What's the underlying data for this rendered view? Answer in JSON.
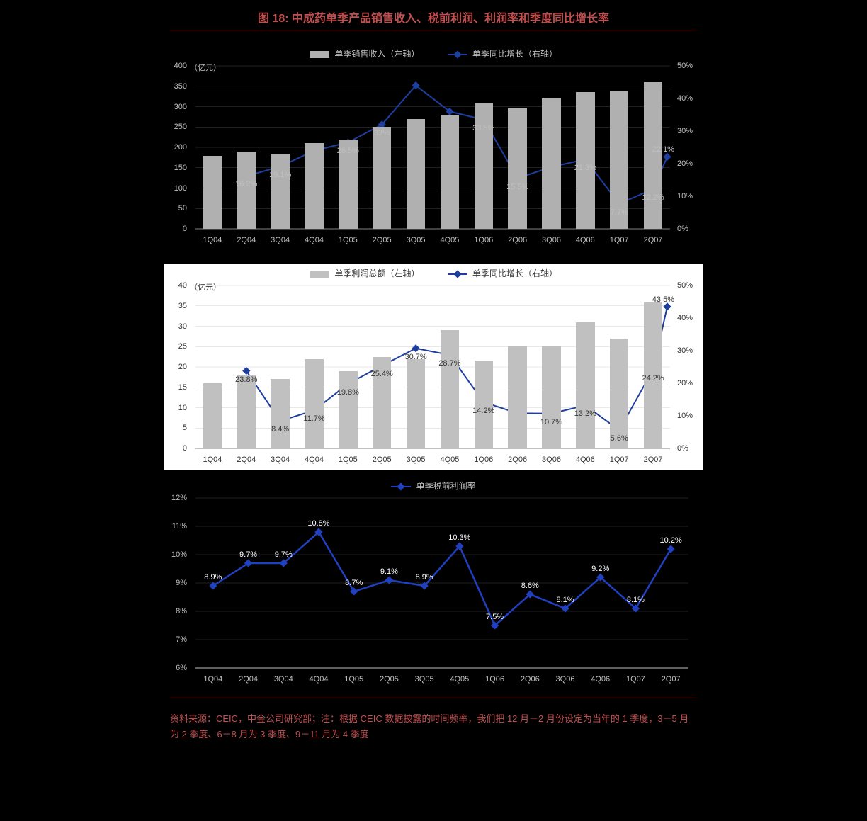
{
  "title": "图 18:  中成药单季产品销售收入、税前利润、利润率和季度同比增长率",
  "footnote": "资料来源：CEIC，中金公司研究部；注：根据 CEIC 数据披露的时间频率，我们把 12 月－2 月份设定为当年的 1 季度，3－5 月为 2 季度、6－8 月为 3 季度、9－11 月为 4 季度",
  "categories": [
    "1Q04",
    "2Q04",
    "3Q04",
    "4Q04",
    "1Q05",
    "2Q05",
    "3Q05",
    "4Q05",
    "1Q06",
    "2Q06",
    "3Q06",
    "4Q06",
    "1Q07",
    "2Q07"
  ],
  "chart1": {
    "type": "bar+line",
    "legend_bar": "单季销售收入（左轴）",
    "legend_line": "单季同比增长（右轴）",
    "unit_left": "（亿元）",
    "bar_color": "#b0b0b0",
    "line_color": "#1f3fa0",
    "marker": "diamond",
    "background": "#000000",
    "ylim_left": [
      0,
      400
    ],
    "ylim_right": [
      0,
      50
    ],
    "ytick_left": [
      0,
      50,
      100,
      150,
      200,
      250,
      300,
      350,
      400
    ],
    "ytick_right": [
      "0%",
      "10%",
      "20%",
      "30%",
      "40%",
      "50%"
    ],
    "bar_values": [
      180,
      190,
      185,
      210,
      220,
      250,
      270,
      280,
      310,
      295,
      320,
      335,
      340,
      360
    ],
    "line_values": [
      null,
      16.2,
      19.1,
      24,
      26.5,
      32,
      44,
      36,
      33.5,
      15.5,
      19,
      21.3,
      7.7,
      12.2
    ],
    "line_end_extra": 22.1,
    "line_labels": [
      null,
      "16.2%",
      "19.1%",
      null,
      "26.5%",
      "32%",
      null,
      null,
      "33.5%",
      "15.5%",
      null,
      "21.3%",
      "7.7%",
      "12.2%"
    ],
    "line_end_label": "22.1%"
  },
  "chart2": {
    "type": "bar+line",
    "legend_bar": "单季利润总额（左轴）",
    "legend_line": "单季同比增长（右轴）",
    "unit_left": "（亿元）",
    "bar_color": "#c0c0c0",
    "line_color": "#1f3fa0",
    "marker": "diamond",
    "background": "#ffffff",
    "ylim_left": [
      0,
      40
    ],
    "ylim_right": [
      0,
      50
    ],
    "ytick_left": [
      0,
      5,
      10,
      15,
      20,
      25,
      30,
      35,
      40
    ],
    "ytick_right": [
      "0%",
      "10%",
      "20%",
      "30%",
      "40%",
      "50%"
    ],
    "bar_values": [
      16,
      18,
      17,
      22,
      19,
      22.5,
      22,
      29,
      21.5,
      25,
      25,
      31,
      27,
      36
    ],
    "line_values": [
      null,
      23.8,
      8.4,
      11.7,
      19.8,
      25.4,
      30.7,
      28.7,
      14.2,
      10.8,
      10.7,
      13.2,
      5.6,
      24.2
    ],
    "line_end_extra": 43.5,
    "line_labels": [
      null,
      "23.8%",
      "8.4%",
      "11.7%",
      "19.8%",
      "25.4%",
      "30.7%",
      "28.7%",
      "14.2%",
      null,
      "10.7%",
      "13.2%",
      "5.6%",
      "24.2%"
    ],
    "line_end_label": "43.5%"
  },
  "chart3": {
    "type": "line",
    "legend_line": "单季税前利润率",
    "line_color": "#2040c0",
    "marker": "diamond",
    "background": "#000000",
    "ylim": [
      6,
      12
    ],
    "ytick": [
      "6%",
      "7%",
      "8%",
      "9%",
      "10%",
      "11%",
      "12%"
    ],
    "values": [
      8.9,
      9.7,
      9.7,
      10.8,
      8.7,
      9.1,
      8.9,
      10.3,
      7.5,
      8.6,
      8.1,
      9.2,
      8.1,
      10.2
    ],
    "labels": [
      "8.9%",
      "9.7%",
      "9.7%",
      "10.8%",
      "8.7%",
      "9.1%",
      "8.9%",
      "10.3%",
      "7.5%",
      "8.6%",
      "8.1%",
      "9.2%",
      "8.1%",
      "10.2%"
    ]
  }
}
